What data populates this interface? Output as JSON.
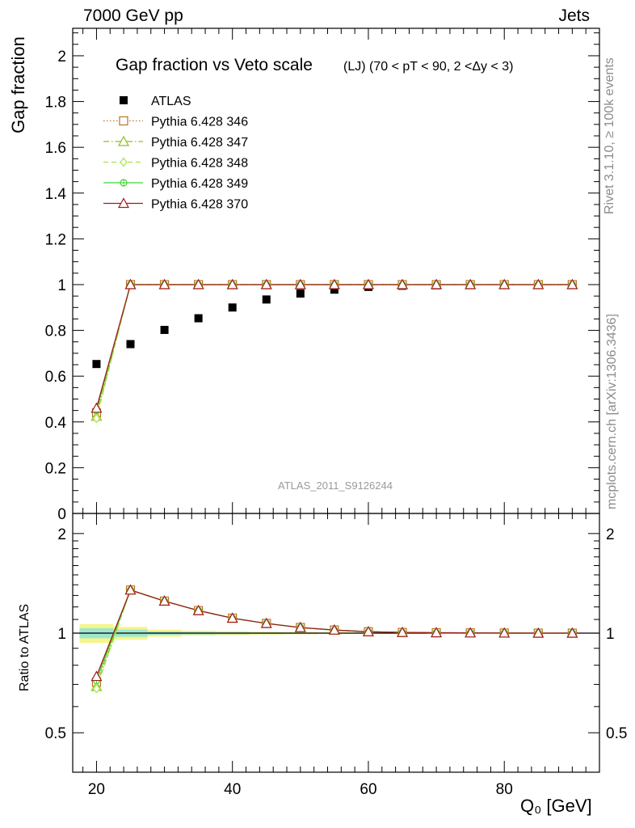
{
  "header": {
    "left": "7000 GeV pp",
    "right": "Jets"
  },
  "side_text": {
    "rivet": "Rivet 3.1.10, ≥ 100k events",
    "mcplots": "mcplots.cern.ch [arXiv:1306.3436]"
  },
  "colors": {
    "data": "#000000",
    "band_inner": "#9ee6cf",
    "band_outer": "#f5f58c"
  },
  "chart_data": [
    {
      "type": "scatter",
      "title": "Gap fraction vs Veto scale",
      "title_suffix": "(LJ) (70 < pT <  90, 2 <Δy < 3)",
      "ylabel": "Gap fraction",
      "xlabel": "",
      "watermark": "ATLAS_2011_S9126244",
      "xlim": [
        16.5,
        94
      ],
      "ylim": [
        0,
        2.12
      ],
      "yticks": [
        0,
        0.2,
        0.4,
        0.6,
        0.8,
        1,
        1.2,
        1.4,
        1.6,
        1.8,
        2
      ],
      "ytick_labels": [
        "0",
        "0.2",
        "0.4",
        "0.6",
        "0.8",
        "1",
        "1.2",
        "1.4",
        "1.6",
        "1.8",
        "2"
      ],
      "legend_position": "top-left",
      "x": [
        20,
        25,
        30,
        35,
        40,
        45,
        50,
        55,
        60,
        65,
        70,
        75,
        80,
        85,
        90
      ],
      "series": [
        {
          "name": "ATLAS",
          "color": "#000000",
          "marker": "square",
          "values": [
            0.653,
            0.74,
            0.802,
            0.853,
            0.9,
            0.935,
            0.961,
            0.978,
            0.99,
            0.995,
            0.997,
            0.998,
            0.999,
            1.0,
            1.0
          ]
        },
        {
          "name": "Pythia 6.428 346",
          "color": "#b5752a",
          "marker": "open-square",
          "line": "dotted",
          "values": [
            0.44,
            1,
            1,
            1,
            1,
            1,
            1,
            1,
            1,
            1,
            1,
            1,
            1,
            1,
            1
          ]
        },
        {
          "name": "Pythia 6.428 347",
          "color": "#8fbf1f",
          "marker": "open-triangle",
          "line": "dashdot",
          "values": [
            0.425,
            1,
            1,
            1,
            1,
            1,
            1,
            1,
            1,
            1,
            1,
            1,
            1,
            1,
            1
          ]
        },
        {
          "name": "Pythia 6.428 348",
          "color": "#a6e34a",
          "marker": "open-diamond",
          "line": "dashed",
          "values": [
            0.415,
            1,
            1,
            1,
            1,
            1,
            1,
            1,
            1,
            1,
            1,
            1,
            1,
            1,
            1
          ]
        },
        {
          "name": "Pythia 6.428 349",
          "color": "#3ad630",
          "marker": "open-circle-cross",
          "line": "solid",
          "values": [
            0.45,
            1,
            1,
            1,
            1,
            1,
            1,
            1,
            1,
            1,
            1,
            1,
            1,
            1,
            1
          ]
        },
        {
          "name": "Pythia 6.428 370",
          "color": "#a01c1c",
          "marker": "open-triangle",
          "line": "solid",
          "values": [
            0.46,
            1,
            1,
            1,
            1,
            1,
            1,
            1,
            1,
            1,
            1,
            1,
            1,
            1,
            1
          ]
        }
      ]
    },
    {
      "type": "scatter",
      "ylabel": "Ratio to ATLAS",
      "xlabel": "Q₀ [GeV]",
      "xlim": [
        16.5,
        94
      ],
      "ylim": [
        0.38,
        2.3
      ],
      "log_y": true,
      "yticks": [
        0.5,
        1,
        2
      ],
      "ytick_labels": [
        "0.5",
        "1",
        "2"
      ],
      "xticks": [
        20,
        40,
        60,
        80
      ],
      "xtick_labels": [
        "20",
        "40",
        "60",
        "80"
      ],
      "reference_line": 1,
      "band": {
        "x_edges": [
          17.5,
          22.5,
          27.5,
          32.5,
          37.5,
          42.5,
          47.5,
          52.5,
          57.5,
          62.5,
          67.5,
          72.5,
          77.5,
          82.5,
          87.5,
          92.5
        ],
        "outer_rel": [
          0.065,
          0.045,
          0.025,
          0.018,
          0.014,
          0.01,
          0.008,
          0.006,
          0.005,
          0.004,
          0.003,
          0.003,
          0.003,
          0.003,
          0.003
        ],
        "inner_rel": [
          0.035,
          0.025,
          0.012,
          0.009,
          0.007,
          0.005,
          0.004,
          0.003,
          0.002,
          0.002,
          0.002,
          0.002,
          0.002,
          0.002,
          0.002
        ]
      },
      "x": [
        20,
        25,
        30,
        35,
        40,
        45,
        50,
        55,
        60,
        65,
        70,
        75,
        80,
        85,
        90
      ],
      "series": [
        {
          "name": "Pythia 6.428 346",
          "color": "#b5752a",
          "marker": "open-square",
          "line": "dotted",
          "values": [
            0.71,
            1.35,
            1.25,
            1.17,
            1.11,
            1.07,
            1.04,
            1.022,
            1.01,
            1.005,
            1.003,
            1.002,
            1.001,
            1.0,
            1.0
          ]
        },
        {
          "name": "Pythia 6.428 347",
          "color": "#8fbf1f",
          "marker": "open-triangle",
          "line": "dashdot",
          "values": [
            0.69,
            1.35,
            1.25,
            1.17,
            1.11,
            1.07,
            1.04,
            1.022,
            1.01,
            1.005,
            1.003,
            1.002,
            1.001,
            1.0,
            1.0
          ]
        },
        {
          "name": "Pythia 6.428 348",
          "color": "#a6e34a",
          "marker": "open-diamond",
          "line": "dashed",
          "values": [
            0.68,
            1.35,
            1.25,
            1.17,
            1.11,
            1.07,
            1.04,
            1.022,
            1.01,
            1.005,
            1.003,
            1.002,
            1.001,
            1.0,
            1.0
          ]
        },
        {
          "name": "Pythia 6.428 349",
          "color": "#3ad630",
          "marker": "open-circle-cross",
          "line": "solid",
          "values": [
            0.72,
            1.35,
            1.25,
            1.17,
            1.11,
            1.07,
            1.04,
            1.022,
            1.01,
            1.005,
            1.003,
            1.002,
            1.001,
            1.0,
            1.0
          ]
        },
        {
          "name": "Pythia 6.428 370",
          "color": "#a01c1c",
          "marker": "open-triangle",
          "line": "solid",
          "values": [
            0.74,
            1.35,
            1.25,
            1.17,
            1.11,
            1.07,
            1.04,
            1.022,
            1.01,
            1.005,
            1.003,
            1.002,
            1.001,
            1.0,
            1.0
          ]
        }
      ]
    }
  ]
}
